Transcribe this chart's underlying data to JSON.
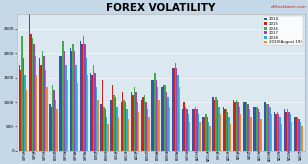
{
  "title": "FOREX VOLATILITY",
  "watermark": "efftootkarei.com",
  "ylim": [
    0,
    2800
  ],
  "yticks": [
    0,
    500,
    1000,
    1500,
    2000,
    2500
  ],
  "series_labels": [
    "2014",
    "2015",
    "2016",
    "2017",
    "2018",
    "2019(August 19)"
  ],
  "series_colors": [
    "#3355aa",
    "#cc2222",
    "#44aa44",
    "#9944bb",
    "#33aacc",
    "#ee8833"
  ],
  "background_color": "#dce8f0",
  "fig_bg": "#c5d8e8",
  "categories": [
    "GBP/USD",
    "GBP/JPY",
    "GBP/CHF",
    "EUR/GBP",
    "GBP/CAD",
    "GBP/AUD",
    "GBP/NZD",
    "EUR/JPY",
    "EUR/CHF",
    "USD/JPY",
    "USD/CHF",
    "AUD/JPY",
    "EUR/USD",
    "EUR/AUD",
    "EUR/CAD",
    "EUR/NZD",
    "USD/CAD",
    "AUD/USD",
    "NZD/USD",
    "CHF/JPY",
    "AUD/CHF",
    "NZD/JPY",
    "CAD/JPY",
    "AUD/CAD",
    "AUD/NZD",
    "NZD/CHF",
    "NZD/CAD",
    "CAD/CHF"
  ],
  "data": {
    "2014": [
      1750,
      2820,
      1900,
      950,
      1950,
      2100,
      2250,
      1600,
      950,
      1050,
      1000,
      1200,
      1050,
      1450,
      1300,
      1700,
      850,
      850,
      700,
      1100,
      900,
      1050,
      1000,
      900,
      1000,
      800,
      850,
      700
    ],
    "2015": [
      1650,
      2400,
      1750,
      900,
      1950,
      2050,
      2200,
      1550,
      1450,
      1350,
      1200,
      1150,
      1100,
      1450,
      1350,
      1700,
      1000,
      850,
      700,
      1050,
      850,
      1000,
      1000,
      900,
      1000,
      750,
      800,
      700
    ],
    "2016": [
      2350,
      2320,
      2050,
      1350,
      2250,
      2200,
      2350,
      1750,
      900,
      1150,
      1050,
      1300,
      1150,
      1600,
      1350,
      1800,
      900,
      900,
      750,
      1100,
      850,
      1050,
      1000,
      900,
      950,
      800,
      850,
      700
    ],
    "2017": [
      1900,
      2200,
      1950,
      1250,
      2050,
      2050,
      2200,
      1600,
      850,
      1100,
      1000,
      1200,
      1000,
      1450,
      1200,
      1700,
      850,
      850,
      700,
      1050,
      800,
      1000,
      950,
      850,
      950,
      750,
      800,
      650
    ],
    "2018": [
      1550,
      1950,
      1650,
      1050,
      1750,
      1750,
      1900,
      1300,
      700,
      900,
      850,
      1000,
      850,
      1300,
      1100,
      1550,
      750,
      750,
      600,
      900,
      700,
      900,
      850,
      800,
      900,
      700,
      750,
      600
    ],
    "2019": [
      1250,
      1550,
      1300,
      850,
      1450,
      1400,
      1550,
      1050,
      550,
      700,
      650,
      800,
      700,
      1050,
      900,
      1300,
      600,
      600,
      500,
      750,
      550,
      750,
      700,
      650,
      750,
      550,
      600,
      500
    ]
  }
}
